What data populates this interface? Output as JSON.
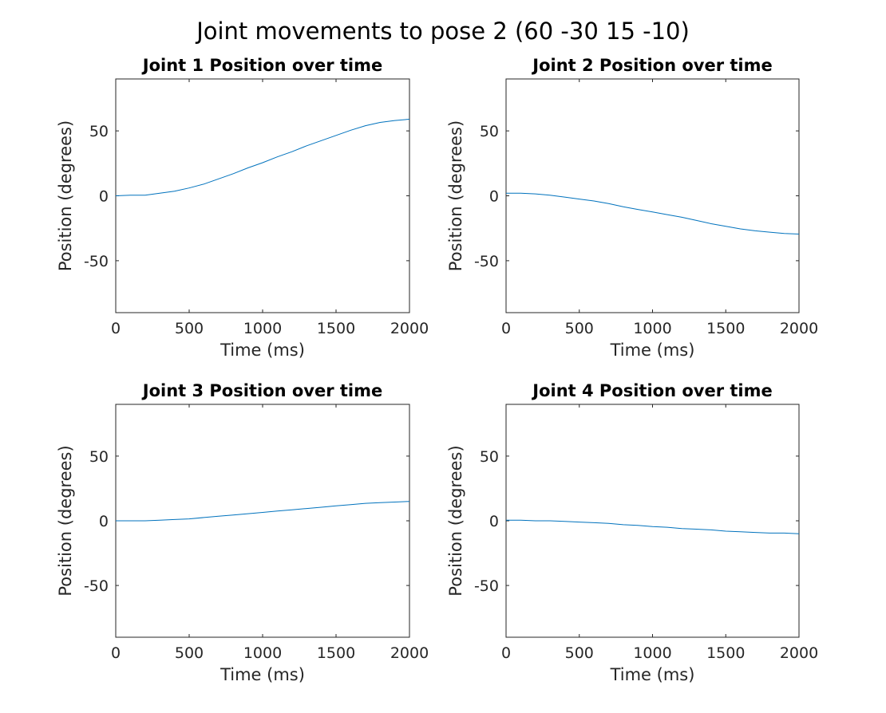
{
  "figure_title": "Joint movements to pose 2 (60 -30 15 -10)",
  "series_color": "#0072BD",
  "chart_data": [
    {
      "type": "line",
      "title": "Joint 1 Position over time",
      "xlabel": "Time (ms)",
      "ylabel": "Position (degrees)",
      "xlim": [
        0,
        2000
      ],
      "ylim": [
        -90,
        90
      ],
      "xticks": [
        0,
        500,
        1000,
        1500,
        2000
      ],
      "yticks": [
        -50,
        0,
        50
      ],
      "grid": false,
      "x": [
        0,
        100,
        200,
        300,
        400,
        500,
        600,
        700,
        800,
        900,
        1000,
        1100,
        1200,
        1300,
        1400,
        1500,
        1600,
        1700,
        1800,
        1900,
        2000
      ],
      "y": [
        0,
        0.5,
        0.5,
        2,
        3.5,
        6,
        9,
        13,
        17,
        21.5,
        25.5,
        30,
        34,
        38.5,
        42.5,
        46.5,
        50.5,
        54,
        56.5,
        58,
        59
      ]
    },
    {
      "type": "line",
      "title": "Joint 2 Position over time",
      "xlabel": "Time (ms)",
      "ylabel": "Position (degrees)",
      "xlim": [
        0,
        2000
      ],
      "ylim": [
        -90,
        90
      ],
      "xticks": [
        0,
        500,
        1000,
        1500,
        2000
      ],
      "yticks": [
        -50,
        0,
        50
      ],
      "grid": false,
      "x": [
        0,
        100,
        200,
        300,
        400,
        500,
        600,
        700,
        800,
        900,
        1000,
        1100,
        1200,
        1300,
        1400,
        1500,
        1600,
        1700,
        1800,
        1900,
        2000
      ],
      "y": [
        2,
        2,
        1.5,
        0.5,
        -1,
        -2.5,
        -4,
        -6,
        -8.5,
        -10.5,
        -12.5,
        -14.5,
        -16.5,
        -19,
        -21.5,
        -23.5,
        -25.5,
        -27,
        -28,
        -29,
        -29.5
      ]
    },
    {
      "type": "line",
      "title": "Joint 3 Position over time",
      "xlabel": "Time (ms)",
      "ylabel": "Position (degrees)",
      "xlim": [
        0,
        2000
      ],
      "ylim": [
        -90,
        90
      ],
      "xticks": [
        0,
        500,
        1000,
        1500,
        2000
      ],
      "yticks": [
        -50,
        0,
        50
      ],
      "grid": false,
      "x": [
        0,
        100,
        200,
        300,
        400,
        500,
        600,
        700,
        800,
        900,
        1000,
        1100,
        1200,
        1300,
        1400,
        1500,
        1600,
        1700,
        1800,
        1900,
        2000
      ],
      "y": [
        0,
        0,
        0,
        0.5,
        1,
        1.5,
        2.5,
        3.5,
        4.5,
        5.5,
        6.5,
        7.5,
        8.5,
        9.5,
        10.5,
        11.5,
        12.5,
        13.5,
        14,
        14.5,
        15
      ]
    },
    {
      "type": "line",
      "title": "Joint 4 Position over time",
      "xlabel": "Time (ms)",
      "ylabel": "Position (degrees)",
      "xlim": [
        0,
        2000
      ],
      "ylim": [
        -90,
        90
      ],
      "xticks": [
        0,
        500,
        1000,
        1500,
        2000
      ],
      "yticks": [
        -50,
        0,
        50
      ],
      "grid": false,
      "x": [
        0,
        100,
        200,
        300,
        400,
        500,
        600,
        700,
        800,
        900,
        1000,
        1100,
        1200,
        1300,
        1400,
        1500,
        1600,
        1700,
        1800,
        1900,
        2000
      ],
      "y": [
        0.5,
        0.5,
        0,
        0,
        -0.5,
        -1,
        -1.5,
        -2,
        -3,
        -3.5,
        -4.5,
        -5,
        -6,
        -6.5,
        -7,
        -8,
        -8.5,
        -9,
        -9.5,
        -9.5,
        -10
      ]
    }
  ]
}
